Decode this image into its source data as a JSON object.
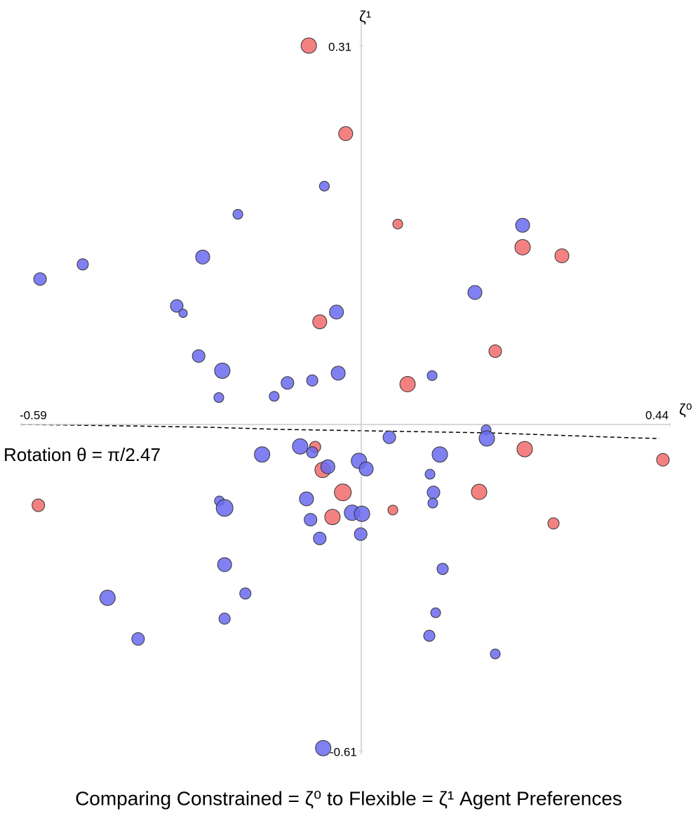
{
  "chart_data": {
    "type": "scatter",
    "title": "Comparing Constrained = ζ⁰ to Flexible = ζ¹ Agent Preferences",
    "annotation": "Rotation θ = π/2.47",
    "x_label": "ζ⁰",
    "y_label": "ζ¹",
    "xlim": [
      -0.59,
      0.44
    ],
    "ylim": [
      -0.61,
      0.31
    ],
    "xticks": [
      -0.59,
      0.44
    ],
    "yticks": [
      -0.61,
      0.31
    ],
    "series": [
      {
        "color": "#f26b6b",
        "x": [
          -0.091,
          -0.027,
          0.052,
          0.23,
          0.286,
          -0.072,
          0.191,
          0.066,
          0.233,
          -0.08,
          -0.067,
          0.43,
          -0.56,
          -0.032,
          0.168,
          -0.05,
          0.045,
          0.274
        ],
        "y": [
          0.31,
          0.238,
          0.164,
          0.145,
          0.138,
          0.084,
          0.06,
          0.033,
          -0.046,
          -0.042,
          -0.085,
          -0.066,
          -0.151,
          -0.127,
          -0.126,
          -0.173,
          -0.16,
          -0.185
        ],
        "sizes": [
          11,
          10,
          7,
          11,
          10,
          10,
          9,
          11,
          11,
          8,
          11,
          9,
          9,
          12,
          11,
          11,
          7,
          8
        ]
      },
      {
        "color": "#6a6af0",
        "x": [
          -0.064,
          -0.214,
          -0.483,
          -0.557,
          -0.275,
          0.23,
          0.162,
          -0.32,
          -0.309,
          -0.043,
          -0.282,
          -0.241,
          -0.04,
          0.101,
          -0.128,
          -0.085,
          -0.247,
          -0.151,
          0.178,
          0.179,
          0.04,
          -0.172,
          -0.106,
          -0.085,
          0.112,
          -0.004,
          -0.058,
          0.007,
          0.098,
          0.103,
          0.102,
          -0.246,
          -0.237,
          -0.095,
          -0.016,
          0.001,
          -0.088,
          -0.072,
          -0.001,
          -0.237,
          0.116,
          -0.201,
          -0.44,
          0.106,
          -0.237,
          -0.387,
          0.097,
          0.191,
          -0.066
        ],
        "y": [
          0.195,
          0.172,
          0.131,
          0.119,
          0.137,
          0.163,
          0.108,
          0.097,
          0.091,
          0.092,
          0.056,
          0.044,
          0.042,
          0.04,
          0.034,
          0.036,
          0.022,
          0.023,
          -0.01,
          -0.026,
          -0.024,
          -0.056,
          -0.041,
          -0.052,
          -0.056,
          -0.068,
          -0.079,
          -0.083,
          -0.093,
          -0.127,
          -0.147,
          -0.143,
          -0.156,
          -0.139,
          -0.165,
          -0.167,
          -0.178,
          -0.213,
          -0.205,
          -0.262,
          -0.27,
          -0.316,
          -0.324,
          -0.352,
          -0.363,
          -0.401,
          -0.395,
          -0.429,
          -0.605
        ],
        "sizes": [
          7,
          7,
          8,
          9,
          10,
          10,
          10,
          9,
          6,
          10,
          9,
          11,
          10,
          7,
          9,
          8,
          7,
          7,
          7,
          11,
          9,
          11,
          11,
          8,
          11,
          11,
          10,
          10,
          7,
          9,
          7,
          7,
          12,
          10,
          11,
          11,
          9,
          9,
          9,
          10,
          8,
          8,
          11,
          7,
          8,
          9,
          8,
          7,
          11
        ]
      }
    ]
  }
}
